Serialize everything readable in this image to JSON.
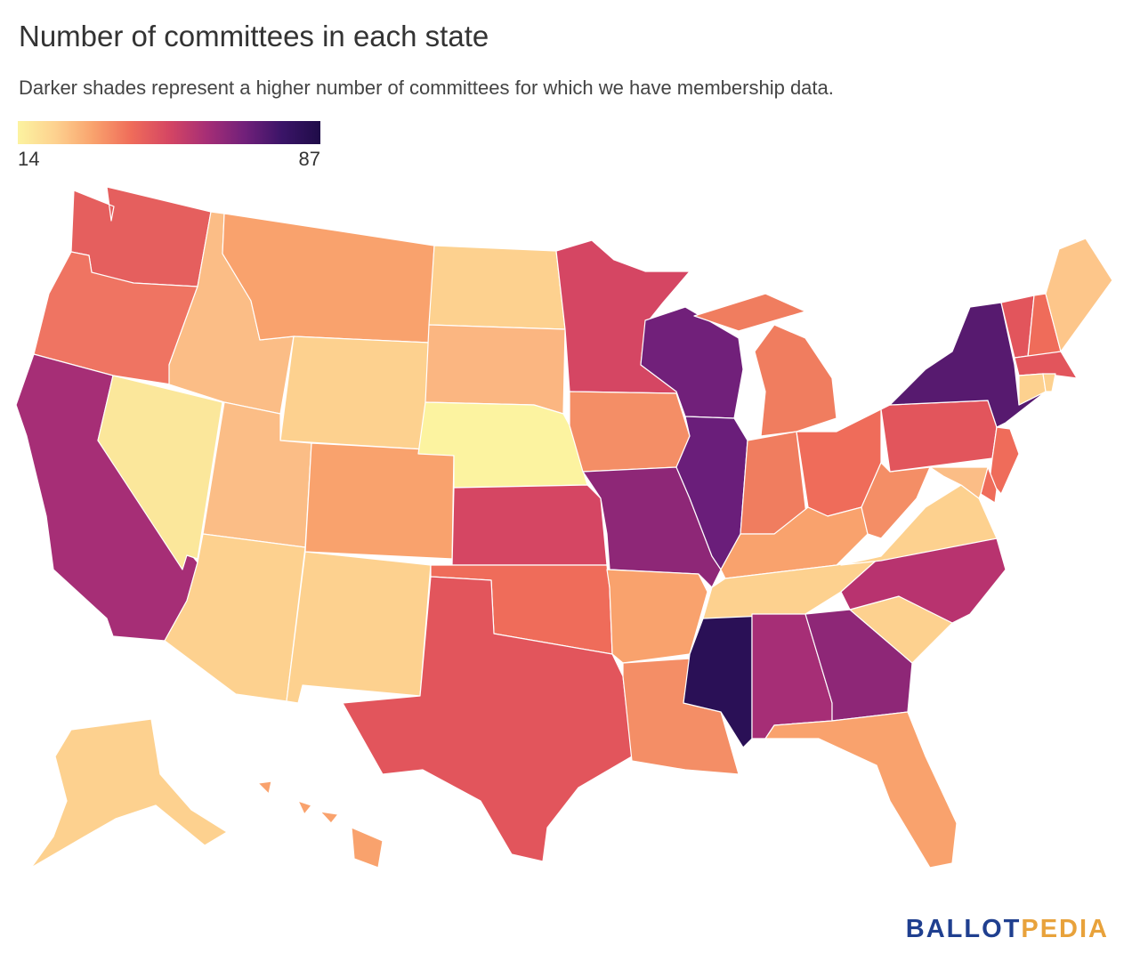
{
  "title": "Number of committees in each state",
  "subtitle": "Darker shades represent a higher number of committees for which we have membership data.",
  "legend": {
    "min": "14",
    "max": "87",
    "colors": [
      "#fcf3a0",
      "#fdd18f",
      "#f9a26d",
      "#ef6c5a",
      "#d54663",
      "#a62e76",
      "#71207a",
      "#3a1467",
      "#1f0c48"
    ]
  },
  "brand": {
    "part1": "BALLOT",
    "part2": "PEDIA",
    "color1": "#1f3f8f",
    "color2": "#e8a23b"
  },
  "chart_data": {
    "type": "choropleth",
    "title": "Number of committees in each state",
    "scale": {
      "min": 14,
      "max": 87
    },
    "states": [
      {
        "code": "WA",
        "color": "#e55f5e"
      },
      {
        "code": "OR",
        "color": "#ef7462"
      },
      {
        "code": "CA",
        "color": "#a62e76"
      },
      {
        "code": "NV",
        "color": "#fbe79b"
      },
      {
        "code": "ID",
        "color": "#fbbd86"
      },
      {
        "code": "MT",
        "color": "#f9a26d"
      },
      {
        "code": "WY",
        "color": "#fdd18f"
      },
      {
        "code": "UT",
        "color": "#fbbd86"
      },
      {
        "code": "AZ",
        "color": "#fdd18f"
      },
      {
        "code": "CO",
        "color": "#f9a26d"
      },
      {
        "code": "NM",
        "color": "#fdd18f"
      },
      {
        "code": "ND",
        "color": "#fdd18f"
      },
      {
        "code": "SD",
        "color": "#fbb681"
      },
      {
        "code": "NE",
        "color": "#fcf3a0"
      },
      {
        "code": "KS",
        "color": "#d54663"
      },
      {
        "code": "OK",
        "color": "#ef6c5a"
      },
      {
        "code": "TX",
        "color": "#e2555c"
      },
      {
        "code": "MN",
        "color": "#d54663"
      },
      {
        "code": "IA",
        "color": "#f48e66"
      },
      {
        "code": "MO",
        "color": "#8e2777"
      },
      {
        "code": "AR",
        "color": "#f9a26d"
      },
      {
        "code": "LA",
        "color": "#f48e66"
      },
      {
        "code": "WI",
        "color": "#71207a"
      },
      {
        "code": "IL",
        "color": "#6a1e7a"
      },
      {
        "code": "MS",
        "color": "#2a1056"
      },
      {
        "code": "MI",
        "color": "#f07d5f"
      },
      {
        "code": "IN",
        "color": "#f07d5f"
      },
      {
        "code": "OH",
        "color": "#ef6c5a"
      },
      {
        "code": "KY",
        "color": "#f9a26d"
      },
      {
        "code": "TN",
        "color": "#fdd18f"
      },
      {
        "code": "AL",
        "color": "#a62e76"
      },
      {
        "code": "GA",
        "color": "#8e2777"
      },
      {
        "code": "FL",
        "color": "#f9a26d"
      },
      {
        "code": "SC",
        "color": "#fdd18f"
      },
      {
        "code": "NC",
        "color": "#b8336f"
      },
      {
        "code": "VA",
        "color": "#fdd18f"
      },
      {
        "code": "WV",
        "color": "#f48e66"
      },
      {
        "code": "PA",
        "color": "#e2555c"
      },
      {
        "code": "NY",
        "color": "#571a6f"
      },
      {
        "code": "VT",
        "color": "#e2555c"
      },
      {
        "code": "NH",
        "color": "#ef6c5a"
      },
      {
        "code": "ME",
        "color": "#fdc68a"
      },
      {
        "code": "MA",
        "color": "#e2555c"
      },
      {
        "code": "CT",
        "color": "#fdd18f"
      },
      {
        "code": "RI",
        "color": "#fdd18f"
      },
      {
        "code": "NJ",
        "color": "#ef6c5a"
      },
      {
        "code": "DE",
        "color": "#ef6c5a"
      },
      {
        "code": "MD",
        "color": "#fbbd86"
      },
      {
        "code": "AK",
        "color": "#fdd18f"
      },
      {
        "code": "HI",
        "color": "#f9a26d"
      }
    ]
  }
}
